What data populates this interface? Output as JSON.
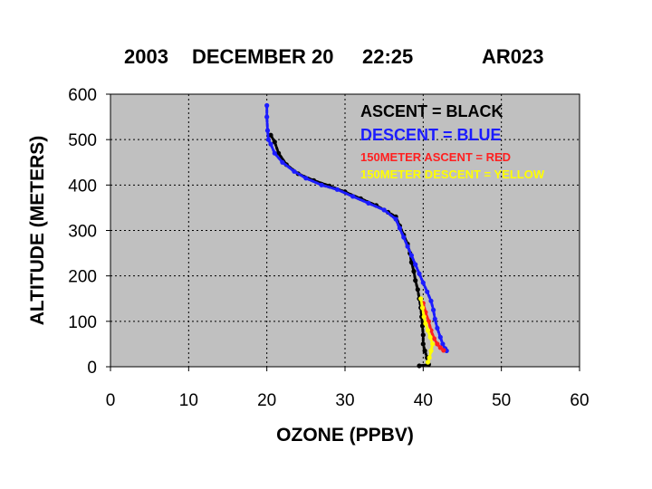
{
  "header": {
    "year": "2003",
    "date": "DECEMBER 20",
    "time": "22:25",
    "id": "AR023"
  },
  "chart_data": {
    "type": "scatter",
    "xlabel": "OZONE (PPBV)",
    "ylabel": "ALTITUDE (METERS)",
    "xlim": [
      0,
      60
    ],
    "ylim": [
      0,
      600
    ],
    "xticks": [
      "0",
      "10",
      "20",
      "30",
      "40",
      "50",
      "60"
    ],
    "yticks": [
      "0",
      "100",
      "200",
      "300",
      "400",
      "500",
      "600"
    ],
    "grid": true,
    "plot_background": "#c0c0c0",
    "legend_position": "top-right",
    "legend": [
      {
        "text": "ASCENT   = BLACK",
        "color": "#000000"
      },
      {
        "text": "DESCENT = BLUE",
        "color": "#1c1cff"
      },
      {
        "text": "150METER ASCENT = RED",
        "color": "#ff2020"
      },
      {
        "text": "150METER DESCENT = YELLOW",
        "color": "#ffff00"
      }
    ],
    "series": [
      {
        "color": "#000000",
        "points": [
          [
            20.5,
            510
          ],
          [
            21.0,
            495
          ],
          [
            21.5,
            470
          ],
          [
            22.5,
            445
          ],
          [
            24.0,
            425
          ],
          [
            26.0,
            410
          ],
          [
            28.0,
            398
          ],
          [
            30.0,
            385
          ],
          [
            32.0,
            370
          ],
          [
            34.0,
            355
          ],
          [
            35.5,
            340
          ],
          [
            36.5,
            330
          ],
          [
            37.0,
            310
          ],
          [
            37.5,
            290
          ],
          [
            38.0,
            270
          ],
          [
            38.3,
            250
          ],
          [
            38.5,
            230
          ],
          [
            38.8,
            210
          ],
          [
            39.0,
            190
          ],
          [
            39.3,
            170
          ],
          [
            39.5,
            150
          ],
          [
            39.7,
            130
          ],
          [
            39.8,
            110
          ],
          [
            39.9,
            90
          ],
          [
            40.0,
            70
          ],
          [
            40.0,
            50
          ],
          [
            40.2,
            35
          ],
          [
            40.5,
            20
          ],
          [
            40.7,
            5
          ],
          [
            39.5,
            2
          ]
        ]
      },
      {
        "color": "#1c1cff",
        "points": [
          [
            20.0,
            575
          ],
          [
            20.0,
            550
          ],
          [
            20.1,
            520
          ],
          [
            20.2,
            500
          ],
          [
            20.5,
            490
          ],
          [
            21.0,
            470
          ],
          [
            22.0,
            450
          ],
          [
            23.5,
            430
          ],
          [
            25.0,
            415
          ],
          [
            27.0,
            400
          ],
          [
            29.0,
            390
          ],
          [
            31.0,
            375
          ],
          [
            33.0,
            360
          ],
          [
            35.0,
            345
          ],
          [
            36.5,
            325
          ],
          [
            37.0,
            305
          ],
          [
            37.5,
            285
          ],
          [
            38.0,
            265
          ],
          [
            38.5,
            245
          ],
          [
            39.0,
            225
          ],
          [
            39.5,
            205
          ],
          [
            40.0,
            185
          ],
          [
            40.5,
            165
          ],
          [
            41.0,
            145
          ],
          [
            41.3,
            125
          ],
          [
            41.5,
            105
          ],
          [
            41.8,
            85
          ],
          [
            42.2,
            65
          ],
          [
            42.5,
            50
          ],
          [
            42.8,
            40
          ],
          [
            43.0,
            35
          ]
        ]
      },
      {
        "color": "#ff2020",
        "points": [
          [
            40.0,
            140
          ],
          [
            40.3,
            120
          ],
          [
            40.7,
            100
          ],
          [
            41.0,
            80
          ],
          [
            41.4,
            62
          ],
          [
            41.8,
            50
          ],
          [
            42.2,
            42
          ],
          [
            42.6,
            36
          ]
        ]
      },
      {
        "color": "#ffff00",
        "points": [
          [
            39.7,
            150
          ],
          [
            39.9,
            130
          ],
          [
            40.1,
            110
          ],
          [
            40.3,
            95
          ],
          [
            40.6,
            80
          ],
          [
            40.9,
            65
          ],
          [
            41.2,
            50
          ],
          [
            41.0,
            35
          ],
          [
            40.8,
            20
          ],
          [
            40.6,
            10
          ]
        ]
      }
    ]
  }
}
